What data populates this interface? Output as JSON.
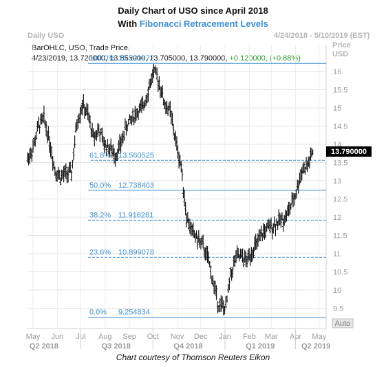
{
  "header": {
    "title_line1": "Daily Chart of USO since April 2018",
    "title_line2_prefix": "With ",
    "title_line2_highlight": "Fibonacci Retracement Levels",
    "panel_name": "Daily USO",
    "date_range": "4/24/2018 - 5/10/2019 (EST)",
    "axis_label": "Price",
    "axis_unit": "USD",
    "study_line": "BarOHLC, USO, Trade Price,",
    "ohlc_line": "4/23/2019, 13.720000, 13.855000, 13.705000, 13.790000,",
    "change_line": "+0.120000, (+0.88%)"
  },
  "credit": "Chart courtesy of Thomson Reuters Eikon",
  "auto_label": "Auto",
  "last_price_label": "13.790000",
  "colors": {
    "bars": "#111111",
    "fib_lines": "#3a8fd6",
    "highlight": "#3a8fd6",
    "change": "#2e9b2e",
    "grid": "#d9d9d9"
  },
  "chart_data": {
    "type": "line",
    "title": "Daily Chart of USO since April 2018",
    "subtitle": "With Fibonacci Retracement Levels",
    "ylabel": "Price USD",
    "ylim": [
      9.0,
      16.5
    ],
    "y_ticks": [
      "16",
      "15.5",
      "15",
      "14.5",
      "14",
      "13.5",
      "13",
      "12.5",
      "12",
      "11.5",
      "11",
      "10.5",
      "10",
      "9.5"
    ],
    "x_ticks": [
      "May",
      "Jun",
      "Jul",
      "Aug",
      "Sep",
      "Oct",
      "Nov",
      "Dec",
      "Jan",
      "Feb",
      "Mar",
      "Apr",
      "May"
    ],
    "x_quarters": [
      "Q2 2018",
      "Q3 2018",
      "Q4 2018",
      "Q1 2019",
      "Q2 2019"
    ],
    "grid": true,
    "fib_levels": [
      {
        "pct": "100.0%",
        "value": "16.221972",
        "y": 16.221972
      },
      {
        "pct": "61.8%",
        "value": "13.560525",
        "y": 13.560525
      },
      {
        "pct": "50.0%",
        "value": "12.738403",
        "y": 12.738403
      },
      {
        "pct": "38.2%",
        "value": "11.916281",
        "y": 11.916281
      },
      {
        "pct": "23.6%",
        "value": "10.899078",
        "y": 10.899078
      },
      {
        "pct": "0.0%",
        "value": "9.254834",
        "y": 9.254834
      }
    ],
    "series": [
      {
        "dates": [
          "2018-04-24",
          "2018-05-01",
          "2018-05-08",
          "2018-05-15",
          "2018-05-22",
          "2018-05-29",
          "2018-06-05",
          "2018-06-12",
          "2018-06-19",
          "2018-06-26",
          "2018-07-03",
          "2018-07-10",
          "2018-07-17",
          "2018-07-24",
          "2018-07-31",
          "2018-08-07",
          "2018-08-14",
          "2018-08-21",
          "2018-08-28",
          "2018-09-04",
          "2018-09-11",
          "2018-09-18",
          "2018-09-25",
          "2018-10-02",
          "2018-10-09",
          "2018-10-16",
          "2018-10-23",
          "2018-10-30",
          "2018-11-06",
          "2018-11-13",
          "2018-11-20",
          "2018-11-27",
          "2018-12-04",
          "2018-12-11",
          "2018-12-18",
          "2018-12-24",
          "2019-01-02",
          "2019-01-08",
          "2019-01-15",
          "2019-01-22",
          "2019-01-29",
          "2019-02-05",
          "2019-02-12",
          "2019-02-19",
          "2019-02-26",
          "2019-03-05",
          "2019-03-12",
          "2019-03-19",
          "2019-03-26",
          "2019-04-02",
          "2019-04-09",
          "2019-04-16",
          "2019-04-23"
        ],
        "close": [
          13.6,
          13.9,
          14.5,
          14.7,
          14.1,
          13.3,
          13.1,
          13.2,
          13.2,
          14.6,
          15.1,
          14.8,
          14.2,
          14.4,
          14.0,
          13.9,
          13.7,
          14.0,
          14.5,
          14.7,
          14.9,
          15.0,
          15.5,
          16.0,
          15.7,
          15.1,
          14.9,
          14.1,
          13.4,
          12.0,
          11.6,
          11.4,
          11.2,
          10.8,
          10.1,
          9.6,
          9.5,
          10.4,
          10.9,
          10.9,
          10.8,
          11.1,
          11.3,
          11.6,
          11.7,
          11.8,
          11.9,
          12.0,
          12.3,
          12.7,
          13.3,
          13.4,
          13.79
        ]
      }
    ]
  }
}
